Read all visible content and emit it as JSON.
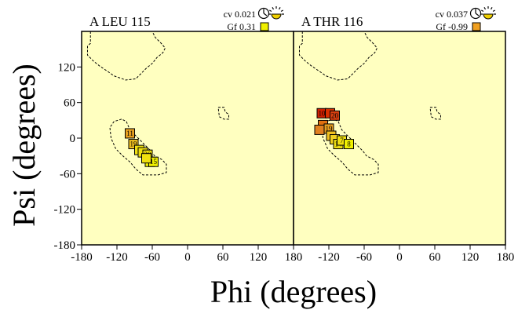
{
  "chart_data": {
    "type": "scatter",
    "xlabel": "Phi (degrees)",
    "ylabel": "Psi (degrees)",
    "xlim": [
      -180,
      180
    ],
    "ylim": [
      -180,
      180
    ],
    "xticks": [
      "-180",
      "-120",
      "-60",
      "0",
      "60",
      "120",
      "180"
    ],
    "yticks": [
      "-180",
      "-120",
      "-60",
      "0",
      "60",
      "120"
    ],
    "grid": false,
    "colors": {
      "background": "#ffffc0",
      "yellow": "#f0f000",
      "orange": "#f0a020",
      "dark_orange": "#e07010",
      "red": "#d02000",
      "contour": "#000000"
    },
    "panels": [
      {
        "title": "A LEU 115",
        "cv_label": "cv 0.021",
        "gf_label": "Gf  0.31",
        "gf_color": "#f0f000",
        "points": [
          {
            "label": "11",
            "phi": -98,
            "psi": 8,
            "color": "#e8a020"
          },
          {
            "label": "19",
            "phi": -92,
            "psi": -10,
            "color": "#f0c020"
          },
          {
            "label": "",
            "phi": -82,
            "psi": -20,
            "color": "#f0e010"
          },
          {
            "label": "",
            "phi": -76,
            "psi": -24,
            "color": "#f0e010"
          },
          {
            "label": "20",
            "phi": -68,
            "psi": -28,
            "color": "#f0e010"
          },
          {
            "label": "8",
            "phi": -64,
            "psi": -40,
            "color": "#f0f000"
          },
          {
            "label": "15",
            "phi": -58,
            "psi": -40,
            "color": "#f0f000"
          },
          {
            "label": "",
            "phi": -70,
            "psi": -34,
            "color": "#f0e010"
          }
        ]
      },
      {
        "title": "A THR 116",
        "cv_label": "cv 0.037",
        "gf_label": "Gf -0.99",
        "gf_color": "#f0a020",
        "points": [
          {
            "label": "10",
            "phi": -132,
            "psi": 42,
            "color": "#d02000"
          },
          {
            "label": "",
            "phi": -118,
            "psi": 42,
            "color": "#d83000"
          },
          {
            "label": "20",
            "phi": -110,
            "psi": 38,
            "color": "#d84010"
          },
          {
            "label": "",
            "phi": -130,
            "psi": 22,
            "color": "#e07010"
          },
          {
            "label": "",
            "phi": -136,
            "psi": 14,
            "color": "#e08020"
          },
          {
            "label": "19",
            "phi": -120,
            "psi": 16,
            "color": "#e8a020"
          },
          {
            "label": "",
            "phi": -116,
            "psi": 4,
            "color": "#f0c020"
          },
          {
            "label": "",
            "phi": -110,
            "psi": -2,
            "color": "#f0d020"
          },
          {
            "label": "14",
            "phi": -104,
            "psi": -10,
            "color": "#f0e010"
          },
          {
            "label": "7",
            "phi": -98,
            "psi": -4,
            "color": "#f0e010"
          },
          {
            "label": "8",
            "phi": -86,
            "psi": -10,
            "color": "#f0f000"
          }
        ]
      }
    ]
  }
}
